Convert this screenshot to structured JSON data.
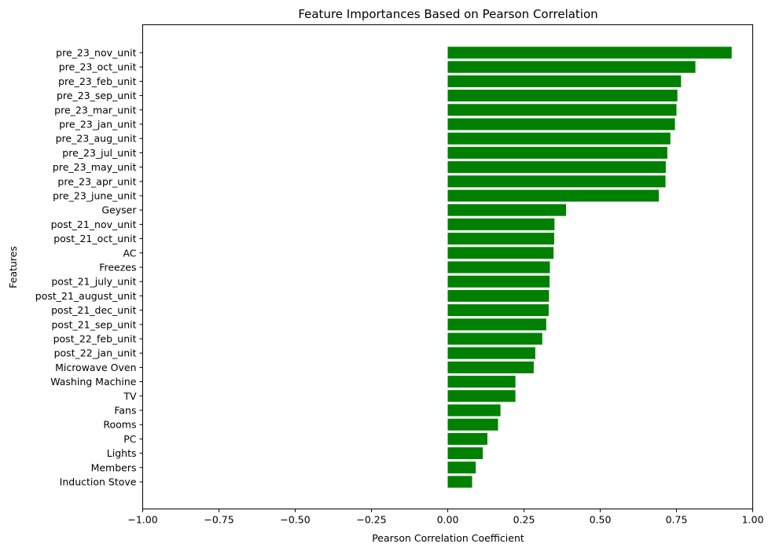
{
  "chart_data": {
    "type": "bar",
    "orientation": "horizontal",
    "title": "Feature Importances Based on Pearson Correlation",
    "xlabel": "Pearson Correlation Coefficient",
    "ylabel": "Features",
    "xlim": [
      -1.0,
      1.0
    ],
    "xticks": [
      -1.0,
      -0.75,
      -0.5,
      -0.25,
      0.0,
      0.25,
      0.5,
      0.75,
      1.0
    ],
    "xtick_labels": [
      "−1.00",
      "−0.75",
      "−0.50",
      "−0.25",
      "0.00",
      "0.25",
      "0.50",
      "0.75",
      "1.00"
    ],
    "grid": false,
    "bar_color": "#008000",
    "categories": [
      "pre_23_nov_unit",
      "pre_23_oct_unit",
      "pre_23_feb_unit",
      "pre_23_sep_unit",
      "pre_23_mar_unit",
      "pre_23_jan_unit",
      "pre_23_aug_unit",
      "pre_23_jul_unit",
      "pre_23_may_unit",
      "pre_23_apr_unit",
      "pre_23_june_unit",
      "Geyser",
      "post_21_nov_unit",
      "post_21_oct_unit",
      "AC",
      "Freezes",
      "post_21_july_unit",
      "post_21_august_unit",
      "post_21_dec_unit",
      "post_21_sep_unit",
      "post_22_feb_unit",
      "post_22_jan_unit",
      "Microwave Oven",
      "Washing Machine",
      "TV",
      "Fans",
      "Rooms",
      "PC",
      "Lights",
      "Members",
      "Induction Stove"
    ],
    "values": [
      0.931,
      0.812,
      0.765,
      0.753,
      0.75,
      0.745,
      0.73,
      0.72,
      0.715,
      0.714,
      0.692,
      0.388,
      0.35,
      0.349,
      0.347,
      0.335,
      0.334,
      0.332,
      0.331,
      0.323,
      0.31,
      0.287,
      0.282,
      0.222,
      0.222,
      0.173,
      0.165,
      0.13,
      0.115,
      0.092,
      0.08
    ]
  }
}
